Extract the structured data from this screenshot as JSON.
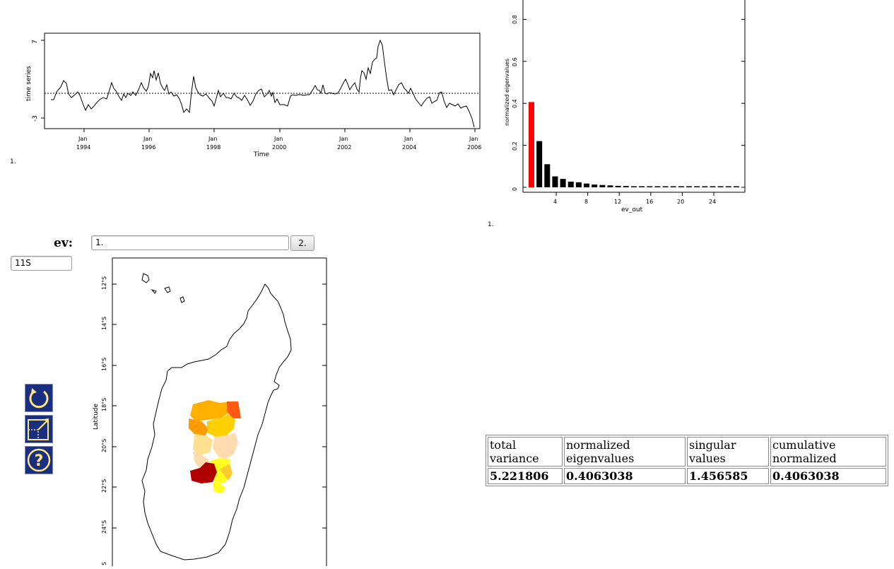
{
  "timeseries_plot": {
    "ylabel": "time series",
    "xlabel": "Time",
    "ytick_top": "7",
    "ytick_bottom": "-3",
    "xticks": [
      {
        "month": "Jan",
        "year": "1994"
      },
      {
        "month": "Jan",
        "year": "1996"
      },
      {
        "month": "Jan",
        "year": "1998"
      },
      {
        "month": "Jan",
        "year": "2000"
      },
      {
        "month": "Jan",
        "year": "2002"
      },
      {
        "month": "Jan",
        "year": "2004"
      },
      {
        "month": "Jan",
        "year": "2006"
      }
    ],
    "footnote": "1."
  },
  "eigen_plot": {
    "ylabel": "normalized eigenvalues",
    "xlabel": "ev_out",
    "yticks": [
      "0",
      "0.2",
      "0.4",
      "0.6",
      "0.8"
    ],
    "xticks": [
      "4",
      "8",
      "12",
      "16",
      "20",
      "24"
    ],
    "footnote": "1."
  },
  "chart_data": {
    "type": "bar",
    "title": "",
    "xlabel": "ev_out",
    "ylabel": "normalized eigenvalues",
    "ylim": [
      0,
      0.9
    ],
    "categories": [
      1,
      2,
      3,
      4,
      5,
      6,
      7,
      8,
      9,
      10,
      11,
      12,
      13,
      14,
      15,
      16,
      17,
      18,
      19,
      20,
      21,
      22,
      23,
      24,
      25,
      26,
      27
    ],
    "values": [
      0.406,
      0.22,
      0.11,
      0.052,
      0.04,
      0.027,
      0.024,
      0.018,
      0.013,
      0.011,
      0.009,
      0.007,
      0.006,
      0.005,
      0.004,
      0.003,
      0.003,
      0.002,
      0.002,
      0.002,
      0.002,
      0.001,
      0.001,
      0.001,
      0.001,
      0.001,
      0.001
    ],
    "highlight_index": 0,
    "highlight_color": "#ff0000",
    "bar_color": "#000000"
  },
  "controls": {
    "ev_label": "ev:",
    "ev_value": "1.",
    "ev_next": "2.",
    "region_value": "11S"
  },
  "map_plot": {
    "ylabel": "Latitude",
    "lat_ticks": [
      "12°S",
      "14°S",
      "16°S",
      "18°S",
      "20°S",
      "22°S",
      "24°S",
      "S"
    ],
    "region_colors": [
      "#ffb000",
      "#ff9a00",
      "#ffd000",
      "#ff5a10",
      "#ffe090",
      "#ffdcb0",
      "#ffff20",
      "#b00000",
      "#ffcc30"
    ]
  },
  "toolbar": {
    "icons": [
      "redraw-icon",
      "zoom-out-icon",
      "help-icon"
    ]
  },
  "stats_table": {
    "headers": [
      [
        "total",
        "variance"
      ],
      [
        "normalized",
        "eigenvalues"
      ],
      [
        "singular",
        "values"
      ],
      [
        "cumulative",
        "normalized"
      ]
    ],
    "values": [
      "5.221806",
      "0.4063038",
      "1.456585",
      "0.4063038"
    ]
  }
}
